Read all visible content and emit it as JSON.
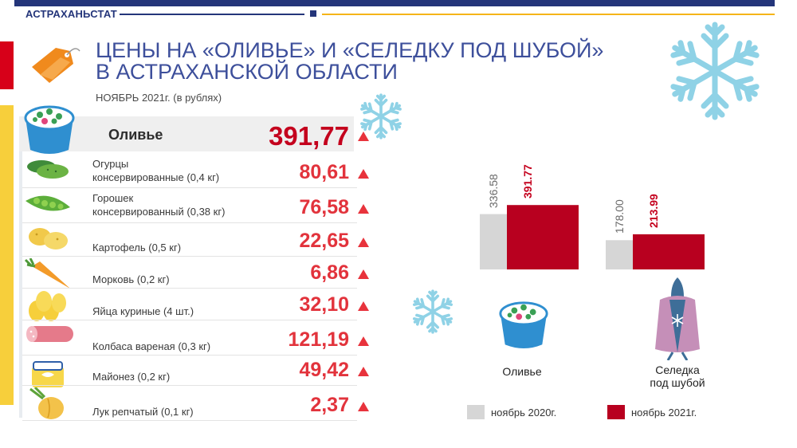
{
  "header": {
    "brand": "АСТРАХАНЬСТАТ",
    "title_line1": "ЦЕНЫ НА «ОЛИВЬЕ» И «СЕЛЕДКУ ПОД ШУБОЙ»",
    "title_line2": "В АСТРАХАНСКОЙ ОБЛАСТИ",
    "subtitle": "НОЯБРЬ 2021г. (в рублях)"
  },
  "colors": {
    "brand_blue": "#24357a",
    "accent_red": "#c4001d",
    "bar_2020": "#d6d6d6",
    "bar_2021": "#b8001f",
    "arrow_up": "#e8333c"
  },
  "olivie": {
    "label": "Оливье",
    "value": "391,77"
  },
  "ingredients": [
    {
      "line1": "Огурцы",
      "line2": "консервированные  (0,4 кг)",
      "value": "80,61",
      "icon": "cucumber-icon"
    },
    {
      "line1": "Горошек",
      "line2": "консервированный  (0,38 кг)",
      "value": "76,58",
      "icon": "peas-icon"
    },
    {
      "line1": "",
      "line2": "Картофель  (0,5 кг)",
      "value": "22,65",
      "icon": "potato-icon"
    },
    {
      "line1": "",
      "line2": "Морковь  (0,2 кг)",
      "value": "6,86",
      "icon": "carrot-icon"
    },
    {
      "line1": "",
      "line2": "Яйца куриные  (4 шт.)",
      "value": "32,10",
      "icon": "eggs-icon"
    },
    {
      "line1": "",
      "line2": "Колбаса вареная  (0,3 кг)",
      "value": "121,19",
      "icon": "sausage-icon"
    },
    {
      "line1": "",
      "line2": "Майонез  (0,2 кг)",
      "value": "49,42",
      "icon": "mayonnaise-icon"
    },
    {
      "line1": "",
      "line2": "Лук репчатый  (0,1 кг)",
      "value": "2,37",
      "icon": "onion-icon"
    }
  ],
  "chart_data": {
    "type": "bar",
    "categories": [
      "Оливье",
      "Селедка под шубой"
    ],
    "category_lines": [
      [
        "Оливье"
      ],
      [
        "Селедка",
        "под шубой"
      ]
    ],
    "series": [
      {
        "name": "ноябрь  2020г.",
        "values": [
          336.58,
          178.0
        ],
        "labels": [
          "336.58",
          "178.00"
        ],
        "color": "#d6d6d6"
      },
      {
        "name": "ноябрь  2021г.",
        "values": [
          391.77,
          213.99
        ],
        "labels": [
          "391.77",
          "213.99"
        ],
        "color": "#b8001f"
      }
    ],
    "ylim": [
      0,
      400
    ]
  },
  "legend": {
    "label_2020": "ноябрь  2020г.",
    "label_2021": "ноябрь  2021г."
  }
}
